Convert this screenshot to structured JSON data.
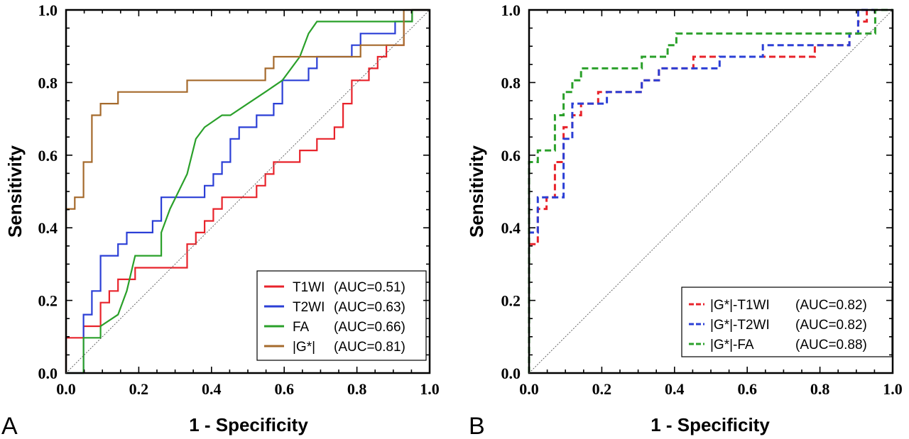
{
  "chart_data": [
    {
      "panel_label": "A",
      "type": "line",
      "xlabel": "1 - Specificity",
      "ylabel": "Sensitivity",
      "xlim": [
        0,
        1
      ],
      "ylim": [
        0,
        1
      ],
      "x_ticks": [
        "0.0",
        "0.2",
        "0.4",
        "0.6",
        "0.8",
        "1.0"
      ],
      "y_ticks": [
        "0.0",
        "0.2",
        "0.4",
        "0.6",
        "0.8",
        "1.0"
      ],
      "reference_line": "diagonal",
      "legend_position": "bottom-right",
      "series": [
        {
          "name": "T1WI",
          "auc_text": "(AUC=0.51)",
          "color": "#e8232b",
          "dashed": false,
          "points": [
            [
              0,
              0
            ],
            [
              0,
              0.097
            ],
            [
              0.048,
              0.097
            ],
            [
              0.048,
              0.129
            ],
            [
              0.095,
              0.129
            ],
            [
              0.095,
              0.194
            ],
            [
              0.119,
              0.194
            ],
            [
              0.119,
              0.226
            ],
            [
              0.143,
              0.226
            ],
            [
              0.143,
              0.258
            ],
            [
              0.19,
              0.258
            ],
            [
              0.19,
              0.29
            ],
            [
              0.238,
              0.29
            ],
            [
              0.238,
              0.29
            ],
            [
              0.333,
              0.29
            ],
            [
              0.333,
              0.355
            ],
            [
              0.357,
              0.355
            ],
            [
              0.357,
              0.387
            ],
            [
              0.381,
              0.387
            ],
            [
              0.381,
              0.419
            ],
            [
              0.405,
              0.419
            ],
            [
              0.405,
              0.452
            ],
            [
              0.429,
              0.452
            ],
            [
              0.429,
              0.484
            ],
            [
              0.524,
              0.484
            ],
            [
              0.524,
              0.516
            ],
            [
              0.548,
              0.516
            ],
            [
              0.548,
              0.548
            ],
            [
              0.571,
              0.548
            ],
            [
              0.571,
              0.581
            ],
            [
              0.643,
              0.581
            ],
            [
              0.643,
              0.613
            ],
            [
              0.69,
              0.613
            ],
            [
              0.69,
              0.645
            ],
            [
              0.738,
              0.645
            ],
            [
              0.738,
              0.677
            ],
            [
              0.762,
              0.677
            ],
            [
              0.762,
              0.742
            ],
            [
              0.786,
              0.742
            ],
            [
              0.786,
              0.806
            ],
            [
              0.833,
              0.806
            ],
            [
              0.833,
              0.839
            ],
            [
              0.857,
              0.839
            ],
            [
              0.857,
              0.871
            ],
            [
              0.881,
              0.871
            ],
            [
              0.881,
              0.903
            ],
            [
              0.929,
              0.903
            ],
            [
              0.929,
              0.968
            ],
            [
              0.952,
              0.968
            ],
            [
              0.952,
              1.0
            ],
            [
              1.0,
              1.0
            ]
          ]
        },
        {
          "name": "T2WI",
          "auc_text": "(AUC=0.63)",
          "color": "#2b3fd6",
          "dashed": false,
          "points": [
            [
              0,
              0
            ],
            [
              0.048,
              0
            ],
            [
              0.048,
              0.161
            ],
            [
              0.071,
              0.161
            ],
            [
              0.071,
              0.226
            ],
            [
              0.095,
              0.226
            ],
            [
              0.095,
              0.323
            ],
            [
              0.143,
              0.323
            ],
            [
              0.143,
              0.355
            ],
            [
              0.167,
              0.355
            ],
            [
              0.167,
              0.387
            ],
            [
              0.238,
              0.387
            ],
            [
              0.238,
              0.419
            ],
            [
              0.262,
              0.419
            ],
            [
              0.262,
              0.484
            ],
            [
              0.381,
              0.484
            ],
            [
              0.381,
              0.516
            ],
            [
              0.405,
              0.516
            ],
            [
              0.405,
              0.548
            ],
            [
              0.429,
              0.548
            ],
            [
              0.429,
              0.581
            ],
            [
              0.452,
              0.581
            ],
            [
              0.452,
              0.645
            ],
            [
              0.476,
              0.645
            ],
            [
              0.476,
              0.677
            ],
            [
              0.524,
              0.677
            ],
            [
              0.524,
              0.71
            ],
            [
              0.571,
              0.71
            ],
            [
              0.571,
              0.742
            ],
            [
              0.595,
              0.742
            ],
            [
              0.595,
              0.806
            ],
            [
              0.667,
              0.806
            ],
            [
              0.667,
              0.839
            ],
            [
              0.69,
              0.839
            ],
            [
              0.69,
              0.871
            ],
            [
              0.786,
              0.871
            ],
            [
              0.786,
              0.903
            ],
            [
              0.81,
              0.903
            ],
            [
              0.81,
              0.935
            ],
            [
              0.905,
              0.935
            ],
            [
              0.905,
              0.968
            ],
            [
              0.952,
              0.968
            ],
            [
              0.952,
              1.0
            ],
            [
              1.0,
              1.0
            ]
          ]
        },
        {
          "name": "FA",
          "auc_text": "(AUC=0.66)",
          "color": "#2aa02a",
          "dashed": false,
          "points": [
            [
              0,
              0
            ],
            [
              0.048,
              0
            ],
            [
              0.048,
              0.097
            ],
            [
              0.095,
              0.097
            ],
            [
              0.095,
              0.129
            ],
            [
              0.143,
              0.161
            ],
            [
              0.167,
              0.226
            ],
            [
              0.19,
              0.323
            ],
            [
              0.262,
              0.323
            ],
            [
              0.262,
              0.387
            ],
            [
              0.286,
              0.452
            ],
            [
              0.333,
              0.548
            ],
            [
              0.357,
              0.645
            ],
            [
              0.381,
              0.677
            ],
            [
              0.429,
              0.71
            ],
            [
              0.452,
              0.71
            ],
            [
              0.5,
              0.742
            ],
            [
              0.548,
              0.774
            ],
            [
              0.595,
              0.806
            ],
            [
              0.643,
              0.871
            ],
            [
              0.667,
              0.935
            ],
            [
              0.69,
              0.968
            ],
            [
              0.952,
              0.968
            ],
            [
              0.952,
              1.0
            ],
            [
              1.0,
              1.0
            ]
          ]
        },
        {
          "name": "|G*|",
          "auc_text": "(AUC=0.81)",
          "color": "#a56a2c",
          "dashed": false,
          "points": [
            [
              0,
              0
            ],
            [
              0,
              0.452
            ],
            [
              0.024,
              0.452
            ],
            [
              0.024,
              0.484
            ],
            [
              0.048,
              0.484
            ],
            [
              0.048,
              0.581
            ],
            [
              0.071,
              0.581
            ],
            [
              0.071,
              0.71
            ],
            [
              0.095,
              0.71
            ],
            [
              0.095,
              0.742
            ],
            [
              0.143,
              0.742
            ],
            [
              0.143,
              0.774
            ],
            [
              0.333,
              0.774
            ],
            [
              0.333,
              0.806
            ],
            [
              0.548,
              0.806
            ],
            [
              0.548,
              0.839
            ],
            [
              0.571,
              0.839
            ],
            [
              0.571,
              0.871
            ],
            [
              0.81,
              0.871
            ],
            [
              0.81,
              0.903
            ],
            [
              0.929,
              0.903
            ],
            [
              0.929,
              1.0
            ],
            [
              1.0,
              1.0
            ]
          ]
        }
      ]
    },
    {
      "panel_label": "B",
      "type": "line",
      "xlabel": "1 - Specificity",
      "ylabel": "Sensitivity",
      "xlim": [
        0,
        1
      ],
      "ylim": [
        0,
        1
      ],
      "x_ticks": [
        "0.0",
        "0.2",
        "0.4",
        "0.6",
        "0.8",
        "1.0"
      ],
      "y_ticks": [
        "0.0",
        "0.2",
        "0.4",
        "0.6",
        "0.8",
        "1.0"
      ],
      "reference_line": "diagonal",
      "legend_position": "bottom-right",
      "series": [
        {
          "name": "|G*|-T1WI",
          "auc_text": "(AUC=0.82)",
          "color": "#e8232b",
          "dashed": true,
          "points": [
            [
              0,
              0
            ],
            [
              0,
              0.355
            ],
            [
              0.024,
              0.355
            ],
            [
              0.024,
              0.452
            ],
            [
              0.048,
              0.452
            ],
            [
              0.048,
              0.484
            ],
            [
              0.071,
              0.484
            ],
            [
              0.071,
              0.581
            ],
            [
              0.095,
              0.581
            ],
            [
              0.095,
              0.677
            ],
            [
              0.119,
              0.677
            ],
            [
              0.119,
              0.71
            ],
            [
              0.143,
              0.71
            ],
            [
              0.143,
              0.742
            ],
            [
              0.19,
              0.742
            ],
            [
              0.19,
              0.774
            ],
            [
              0.31,
              0.774
            ],
            [
              0.31,
              0.806
            ],
            [
              0.357,
              0.806
            ],
            [
              0.357,
              0.839
            ],
            [
              0.405,
              0.839
            ],
            [
              0.405,
              0.839
            ],
            [
              0.452,
              0.839
            ],
            [
              0.452,
              0.871
            ],
            [
              0.786,
              0.871
            ],
            [
              0.786,
              0.903
            ],
            [
              0.881,
              0.903
            ],
            [
              0.881,
              0.935
            ],
            [
              0.905,
              0.935
            ],
            [
              0.905,
              0.968
            ],
            [
              0.929,
              0.968
            ],
            [
              0.929,
              1.0
            ],
            [
              1.0,
              1.0
            ]
          ]
        },
        {
          "name": "|G*|-T2WI",
          "auc_text": "(AUC=0.82)",
          "color": "#2b3fd6",
          "dashed": true,
          "points": [
            [
              0,
              0
            ],
            [
              0,
              0.387
            ],
            [
              0.024,
              0.387
            ],
            [
              0.024,
              0.484
            ],
            [
              0.095,
              0.484
            ],
            [
              0.095,
              0.645
            ],
            [
              0.119,
              0.645
            ],
            [
              0.119,
              0.742
            ],
            [
              0.214,
              0.742
            ],
            [
              0.214,
              0.774
            ],
            [
              0.31,
              0.774
            ],
            [
              0.31,
              0.806
            ],
            [
              0.357,
              0.806
            ],
            [
              0.357,
              0.839
            ],
            [
              0.524,
              0.839
            ],
            [
              0.524,
              0.871
            ],
            [
              0.643,
              0.871
            ],
            [
              0.643,
              0.903
            ],
            [
              0.881,
              0.903
            ],
            [
              0.881,
              0.935
            ],
            [
              0.905,
              0.935
            ],
            [
              0.905,
              1.0
            ],
            [
              1.0,
              1.0
            ]
          ]
        },
        {
          "name": "|G*|-FA",
          "auc_text": "(AUC=0.88)",
          "color": "#2aa02a",
          "dashed": true,
          "points": [
            [
              0,
              0
            ],
            [
              0,
              0.581
            ],
            [
              0.024,
              0.581
            ],
            [
              0.024,
              0.613
            ],
            [
              0.071,
              0.613
            ],
            [
              0.071,
              0.71
            ],
            [
              0.095,
              0.71
            ],
            [
              0.095,
              0.774
            ],
            [
              0.119,
              0.774
            ],
            [
              0.119,
              0.806
            ],
            [
              0.143,
              0.806
            ],
            [
              0.143,
              0.839
            ],
            [
              0.31,
              0.839
            ],
            [
              0.31,
              0.871
            ],
            [
              0.381,
              0.871
            ],
            [
              0.381,
              0.903
            ],
            [
              0.405,
              0.903
            ],
            [
              0.405,
              0.935
            ],
            [
              0.881,
              0.935
            ],
            [
              0.881,
              0.935
            ],
            [
              0.952,
              0.935
            ],
            [
              0.952,
              1.0
            ],
            [
              1.0,
              1.0
            ]
          ]
        }
      ]
    }
  ]
}
